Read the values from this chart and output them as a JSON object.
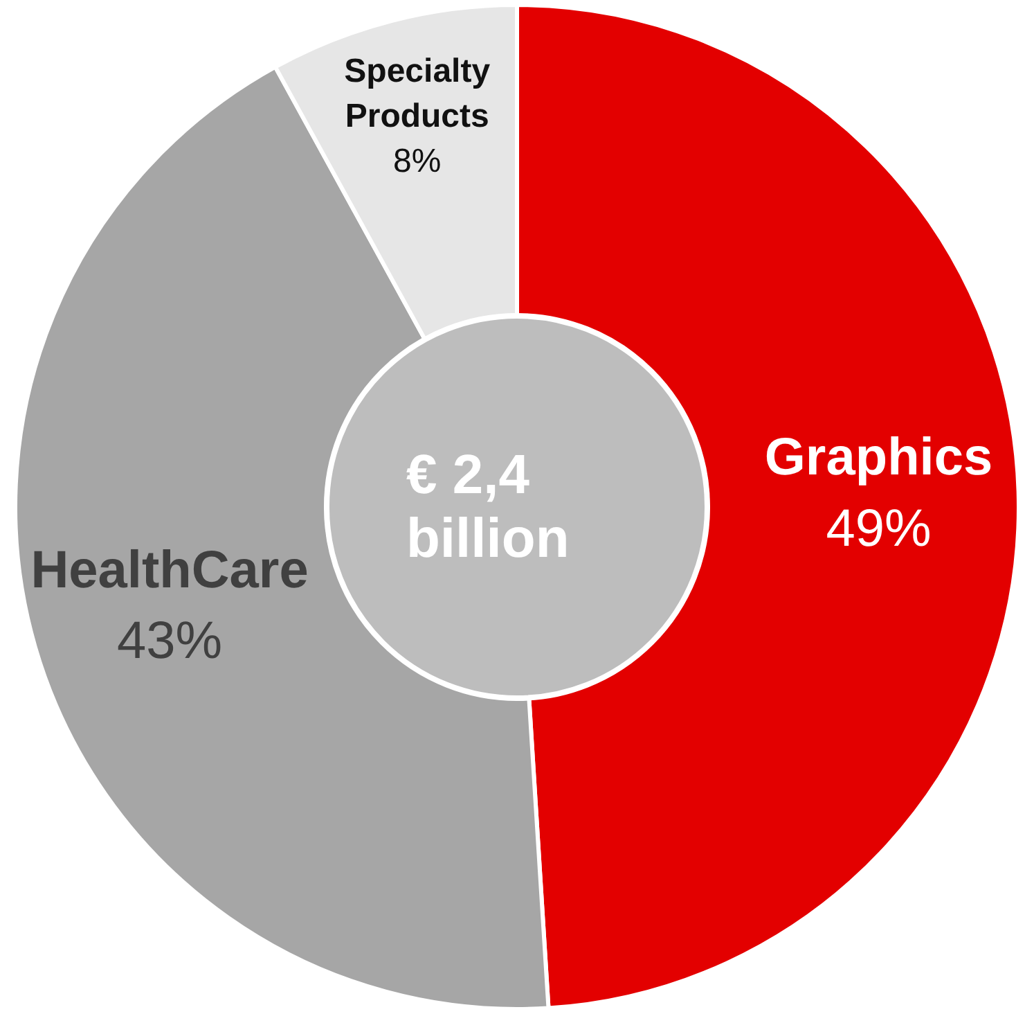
{
  "chart_data": {
    "type": "donut",
    "categories": [
      "Graphics",
      "HealthCare",
      "Specialty Products"
    ],
    "values": [
      49,
      43,
      8
    ],
    "colors": [
      "#e30000",
      "#a6a6a6",
      "#e6e6e6"
    ],
    "value_labels": [
      "49%",
      "43%",
      "8%"
    ],
    "annotations": [
      "€ 2,4 billion"
    ],
    "legend": false
  }
}
